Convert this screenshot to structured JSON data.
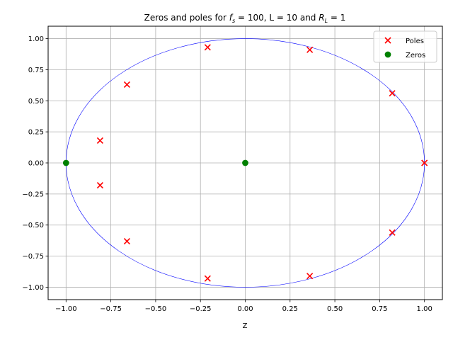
{
  "chart_data": {
    "type": "scatter",
    "title": "Zeros and poles for f_s = 100, L = 10 and R_L = 1",
    "title_parts": {
      "pre": "Zeros and poles for ",
      "fs_main": "f",
      "fs_sub": "s",
      "mid": " = 100, L = 10 and ",
      "rl_main": "R",
      "rl_sub": "L",
      "post": " = 1"
    },
    "xlabel": "Z",
    "ylabel": "",
    "xlim": [
      -1.1,
      1.1
    ],
    "ylim": [
      -1.1,
      1.1
    ],
    "xticks": [
      -1.0,
      -0.75,
      -0.5,
      -0.25,
      0.0,
      0.25,
      0.5,
      0.75,
      1.0
    ],
    "xtick_labels": [
      "−1.00",
      "−0.75",
      "−0.50",
      "−0.25",
      "0.00",
      "0.25",
      "0.50",
      "0.75",
      "1.00"
    ],
    "yticks": [
      1.0,
      0.75,
      0.5,
      0.25,
      0.0,
      -0.25,
      -0.5,
      -0.75,
      -1.0
    ],
    "ytick_labels": [
      "1.00",
      "0.75",
      "0.50",
      "0.25",
      "0.00",
      "−0.25",
      "−0.50",
      "−0.75",
      "−1.00"
    ],
    "grid": true,
    "legend_position": "top-right",
    "unit_circle": {
      "radius": 1,
      "color": "#0000ff"
    },
    "series": [
      {
        "name": "Poles",
        "marker": "x",
        "color": "#ff0000",
        "points": [
          {
            "x": 1.0,
            "y": 0.0
          },
          {
            "x": 0.82,
            "y": 0.56
          },
          {
            "x": 0.36,
            "y": 0.91
          },
          {
            "x": -0.21,
            "y": 0.93
          },
          {
            "x": -0.66,
            "y": 0.63
          },
          {
            "x": -0.81,
            "y": 0.18
          },
          {
            "x": -0.81,
            "y": -0.18
          },
          {
            "x": -0.66,
            "y": -0.63
          },
          {
            "x": -0.21,
            "y": -0.93
          },
          {
            "x": 0.36,
            "y": -0.91
          },
          {
            "x": 0.82,
            "y": -0.56
          }
        ]
      },
      {
        "name": "Zeros",
        "marker": "o",
        "color": "#008000",
        "points": [
          {
            "x": -1.0,
            "y": 0.0
          },
          {
            "x": 0.0,
            "y": 0.0
          }
        ]
      }
    ]
  }
}
